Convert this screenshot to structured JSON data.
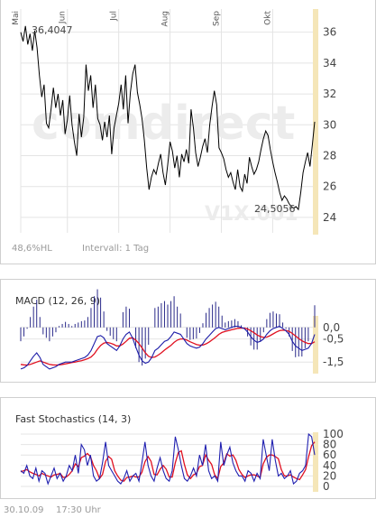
{
  "colors": {
    "price_line": "#000000",
    "macd_line": "#1c1ca8",
    "signal_line": "#e01020",
    "histogram": "#2a2a8a",
    "stoch_k": "#2020b0",
    "stoch_d": "#e01020",
    "right_axis_band": "#f5e6b8",
    "grid": "#e4e4e4",
    "watermark": "#ececec",
    "watermark_accent": "#f6e6b0"
  },
  "price_chart": {
    "months": [
      "Mai",
      "Jun",
      "Jul",
      "Aug",
      "Sep",
      "Okt"
    ],
    "y_ticks": [
      "36",
      "34",
      "32",
      "30",
      "28",
      "26",
      "24"
    ],
    "high_label": "36,4047",
    "low_label": "24,5056",
    "watermark_brand": "comdirect",
    "watermark_symbol": "V1X.001",
    "percent_label": "48,6%HL",
    "interval_label": "Intervall: 1 Tag"
  },
  "macd_chart": {
    "title": "MACD (12, 26, 9)",
    "y_ticks": [
      "0,0",
      "-0,5",
      "-1,5"
    ]
  },
  "stoch_chart": {
    "title": "Fast Stochastics (14, 3)",
    "y_ticks": [
      "100",
      "80",
      "60",
      "40",
      "20",
      "0"
    ]
  },
  "footer": {
    "date": "30.10.09",
    "time": "17:30 Uhr"
  },
  "chart_data": [
    {
      "type": "line",
      "name": "price",
      "ylim": [
        23,
        37.5
      ],
      "month_labels": [
        "Mai",
        "Jun",
        "Jul",
        "Aug",
        "Sep",
        "Okt"
      ],
      "month_start_index": [
        0,
        20,
        42,
        64,
        86,
        108
      ],
      "values": [
        36.0,
        35.4,
        36.4,
        35.2,
        35.9,
        34.8,
        36.1,
        35.0,
        33.2,
        31.8,
        32.6,
        30.1,
        29.8,
        31.0,
        32.4,
        31.1,
        32.0,
        30.6,
        31.6,
        29.4,
        30.3,
        31.9,
        30.0,
        28.9,
        28.0,
        30.7,
        29.2,
        30.5,
        33.9,
        32.2,
        33.2,
        31.1,
        32.6,
        30.4,
        30.0,
        29.0,
        30.2,
        29.2,
        30.6,
        28.1,
        29.8,
        30.6,
        31.4,
        32.6,
        31.0,
        33.2,
        30.1,
        32.1,
        33.3,
        33.9,
        32.1,
        31.3,
        30.4,
        29.0,
        27.2,
        25.8,
        26.6,
        27.1,
        26.8,
        27.5,
        28.1,
        26.9,
        26.1,
        27.4,
        28.9,
        28.3,
        27.2,
        28.0,
        26.6,
        28.1,
        27.6,
        28.4,
        27.5,
        31.0,
        29.8,
        28.2,
        27.3,
        27.9,
        28.6,
        29.1,
        28.2,
        30.0,
        31.2,
        32.2,
        31.3,
        28.5,
        28.2,
        27.8,
        27.1,
        26.6,
        26.9,
        26.3,
        25.8,
        27.1,
        26.0,
        25.7,
        26.8,
        26.2,
        27.9,
        27.3,
        26.8,
        27.1,
        27.6,
        28.4,
        29.1,
        29.6,
        29.3,
        28.4,
        27.6,
        26.9,
        26.3,
        25.6,
        25.1,
        25.4,
        25.2,
        24.9,
        24.7,
        24.6,
        24.7,
        24.5056,
        25.6,
        26.9,
        27.6,
        28.2,
        27.3,
        28.7,
        30.2
      ]
    },
    {
      "type": "line",
      "name": "macd",
      "ylim": [
        -2.0,
        0.5
      ],
      "macd": [
        -1.8,
        -1.75,
        -1.65,
        -1.45,
        -1.25,
        -1.1,
        -1.3,
        -1.6,
        -1.7,
        -1.8,
        -1.75,
        -1.7,
        -1.6,
        -1.55,
        -1.5,
        -1.5,
        -1.5,
        -1.45,
        -1.4,
        -1.35,
        -1.3,
        -1.2,
        -1.0,
        -0.7,
        -0.4,
        -0.35,
        -0.45,
        -0.7,
        -0.8,
        -0.9,
        -1.0,
        -0.8,
        -0.5,
        -0.3,
        -0.2,
        -0.45,
        -0.85,
        -1.2,
        -1.45,
        -1.55,
        -1.5,
        -1.3,
        -1.0,
        -0.9,
        -0.75,
        -0.6,
        -0.55,
        -0.4,
        -0.2,
        -0.25,
        -0.3,
        -0.5,
        -0.7,
        -0.8,
        -0.85,
        -0.9,
        -0.85,
        -0.7,
        -0.5,
        -0.35,
        -0.2,
        -0.05,
        0.0,
        -0.05,
        -0.1,
        -0.05,
        0.0,
        0.05,
        0.05,
        0.0,
        -0.05,
        -0.2,
        -0.4,
        -0.55,
        -0.65,
        -0.6,
        -0.5,
        -0.3,
        -0.15,
        -0.05,
        0.0,
        0.05,
        -0.05,
        -0.15,
        -0.3,
        -0.6,
        -0.8,
        -0.9,
        -1.0,
        -0.95,
        -0.9,
        -0.7,
        -0.3
      ],
      "signal": [
        -1.6,
        -1.62,
        -1.63,
        -1.6,
        -1.55,
        -1.5,
        -1.45,
        -1.5,
        -1.55,
        -1.6,
        -1.62,
        -1.63,
        -1.62,
        -1.6,
        -1.58,
        -1.55,
        -1.52,
        -1.5,
        -1.47,
        -1.44,
        -1.4,
        -1.35,
        -1.28,
        -1.15,
        -0.95,
        -0.78,
        -0.68,
        -0.65,
        -0.68,
        -0.73,
        -0.8,
        -0.8,
        -0.72,
        -0.6,
        -0.47,
        -0.45,
        -0.55,
        -0.7,
        -0.9,
        -1.1,
        -1.25,
        -1.3,
        -1.28,
        -1.2,
        -1.1,
        -0.98,
        -0.88,
        -0.78,
        -0.65,
        -0.55,
        -0.5,
        -0.5,
        -0.55,
        -0.62,
        -0.68,
        -0.74,
        -0.77,
        -0.76,
        -0.71,
        -0.63,
        -0.53,
        -0.42,
        -0.3,
        -0.22,
        -0.17,
        -0.14,
        -0.1,
        -0.07,
        -0.04,
        -0.03,
        -0.03,
        -0.07,
        -0.14,
        -0.23,
        -0.33,
        -0.4,
        -0.43,
        -0.42,
        -0.36,
        -0.28,
        -0.2,
        -0.14,
        -0.12,
        -0.13,
        -0.17,
        -0.26,
        -0.37,
        -0.48,
        -0.58,
        -0.65,
        -0.7,
        -0.7,
        -0.62
      ]
    },
    {
      "type": "line",
      "name": "stochastics",
      "ylim": [
        0,
        100
      ],
      "k": [
        30,
        25,
        40,
        20,
        15,
        35,
        10,
        30,
        25,
        5,
        20,
        35,
        15,
        25,
        10,
        20,
        40,
        30,
        60,
        25,
        80,
        70,
        40,
        60,
        20,
        10,
        15,
        45,
        85,
        40,
        30,
        20,
        10,
        5,
        15,
        30,
        10,
        20,
        25,
        10,
        45,
        85,
        40,
        20,
        10,
        35,
        55,
        30,
        15,
        10,
        30,
        95,
        70,
        40,
        15,
        10,
        20,
        35,
        20,
        60,
        40,
        80,
        30,
        15,
        20,
        10,
        85,
        40,
        60,
        75,
        45,
        30,
        20,
        20,
        10,
        30,
        25,
        10,
        25,
        15,
        90,
        60,
        30,
        90,
        50,
        20,
        25,
        15,
        20,
        30,
        5,
        10,
        25,
        30,
        40,
        100,
        95,
        60
      ],
      "d": [
        28,
        30,
        32,
        28,
        25,
        23,
        20,
        25,
        22,
        20,
        18,
        22,
        23,
        25,
        17,
        18,
        23,
        30,
        43,
        38,
        55,
        58,
        63,
        57,
        40,
        30,
        15,
        23,
        48,
        57,
        52,
        30,
        20,
        12,
        10,
        17,
        18,
        20,
        18,
        18,
        27,
        47,
        57,
        48,
        23,
        22,
        33,
        40,
        33,
        18,
        18,
        45,
        65,
        68,
        42,
        22,
        15,
        22,
        25,
        38,
        40,
        60,
        50,
        42,
        22,
        15,
        38,
        45,
        62,
        58,
        60,
        50,
        32,
        23,
        17,
        20,
        22,
        22,
        20,
        17,
        43,
        55,
        60,
        60,
        57,
        53,
        32,
        20,
        20,
        22,
        18,
        15,
        13,
        22,
        32,
        57,
        78,
        85
      ]
    }
  ]
}
